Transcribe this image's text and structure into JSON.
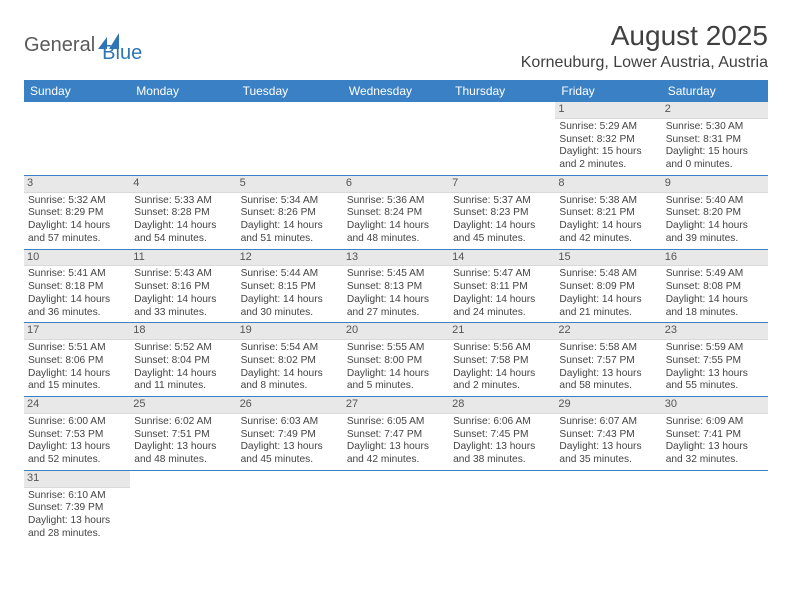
{
  "logo": {
    "word1": "General",
    "word2": "Blue"
  },
  "title": "August 2025",
  "location": "Korneuburg, Lower Austria, Austria",
  "colors": {
    "header_bg": "#3a80c4",
    "header_fg": "#ffffff",
    "daynum_bg": "#e8e8e8",
    "border": "#3a80c4",
    "logo_blue": "#2f75b5",
    "text": "#404040"
  },
  "weekdays": [
    "Sunday",
    "Monday",
    "Tuesday",
    "Wednesday",
    "Thursday",
    "Friday",
    "Saturday"
  ],
  "weeks": [
    [
      null,
      null,
      null,
      null,
      null,
      {
        "d": "1",
        "r": "Sunrise: 5:29 AM",
        "s": "Sunset: 8:32 PM",
        "l1": "Daylight: 15 hours",
        "l2": "and 2 minutes."
      },
      {
        "d": "2",
        "r": "Sunrise: 5:30 AM",
        "s": "Sunset: 8:31 PM",
        "l1": "Daylight: 15 hours",
        "l2": "and 0 minutes."
      }
    ],
    [
      {
        "d": "3",
        "r": "Sunrise: 5:32 AM",
        "s": "Sunset: 8:29 PM",
        "l1": "Daylight: 14 hours",
        "l2": "and 57 minutes."
      },
      {
        "d": "4",
        "r": "Sunrise: 5:33 AM",
        "s": "Sunset: 8:28 PM",
        "l1": "Daylight: 14 hours",
        "l2": "and 54 minutes."
      },
      {
        "d": "5",
        "r": "Sunrise: 5:34 AM",
        "s": "Sunset: 8:26 PM",
        "l1": "Daylight: 14 hours",
        "l2": "and 51 minutes."
      },
      {
        "d": "6",
        "r": "Sunrise: 5:36 AM",
        "s": "Sunset: 8:24 PM",
        "l1": "Daylight: 14 hours",
        "l2": "and 48 minutes."
      },
      {
        "d": "7",
        "r": "Sunrise: 5:37 AM",
        "s": "Sunset: 8:23 PM",
        "l1": "Daylight: 14 hours",
        "l2": "and 45 minutes."
      },
      {
        "d": "8",
        "r": "Sunrise: 5:38 AM",
        "s": "Sunset: 8:21 PM",
        "l1": "Daylight: 14 hours",
        "l2": "and 42 minutes."
      },
      {
        "d": "9",
        "r": "Sunrise: 5:40 AM",
        "s": "Sunset: 8:20 PM",
        "l1": "Daylight: 14 hours",
        "l2": "and 39 minutes."
      }
    ],
    [
      {
        "d": "10",
        "r": "Sunrise: 5:41 AM",
        "s": "Sunset: 8:18 PM",
        "l1": "Daylight: 14 hours",
        "l2": "and 36 minutes."
      },
      {
        "d": "11",
        "r": "Sunrise: 5:43 AM",
        "s": "Sunset: 8:16 PM",
        "l1": "Daylight: 14 hours",
        "l2": "and 33 minutes."
      },
      {
        "d": "12",
        "r": "Sunrise: 5:44 AM",
        "s": "Sunset: 8:15 PM",
        "l1": "Daylight: 14 hours",
        "l2": "and 30 minutes."
      },
      {
        "d": "13",
        "r": "Sunrise: 5:45 AM",
        "s": "Sunset: 8:13 PM",
        "l1": "Daylight: 14 hours",
        "l2": "and 27 minutes."
      },
      {
        "d": "14",
        "r": "Sunrise: 5:47 AM",
        "s": "Sunset: 8:11 PM",
        "l1": "Daylight: 14 hours",
        "l2": "and 24 minutes."
      },
      {
        "d": "15",
        "r": "Sunrise: 5:48 AM",
        "s": "Sunset: 8:09 PM",
        "l1": "Daylight: 14 hours",
        "l2": "and 21 minutes."
      },
      {
        "d": "16",
        "r": "Sunrise: 5:49 AM",
        "s": "Sunset: 8:08 PM",
        "l1": "Daylight: 14 hours",
        "l2": "and 18 minutes."
      }
    ],
    [
      {
        "d": "17",
        "r": "Sunrise: 5:51 AM",
        "s": "Sunset: 8:06 PM",
        "l1": "Daylight: 14 hours",
        "l2": "and 15 minutes."
      },
      {
        "d": "18",
        "r": "Sunrise: 5:52 AM",
        "s": "Sunset: 8:04 PM",
        "l1": "Daylight: 14 hours",
        "l2": "and 11 minutes."
      },
      {
        "d": "19",
        "r": "Sunrise: 5:54 AM",
        "s": "Sunset: 8:02 PM",
        "l1": "Daylight: 14 hours",
        "l2": "and 8 minutes."
      },
      {
        "d": "20",
        "r": "Sunrise: 5:55 AM",
        "s": "Sunset: 8:00 PM",
        "l1": "Daylight: 14 hours",
        "l2": "and 5 minutes."
      },
      {
        "d": "21",
        "r": "Sunrise: 5:56 AM",
        "s": "Sunset: 7:58 PM",
        "l1": "Daylight: 14 hours",
        "l2": "and 2 minutes."
      },
      {
        "d": "22",
        "r": "Sunrise: 5:58 AM",
        "s": "Sunset: 7:57 PM",
        "l1": "Daylight: 13 hours",
        "l2": "and 58 minutes."
      },
      {
        "d": "23",
        "r": "Sunrise: 5:59 AM",
        "s": "Sunset: 7:55 PM",
        "l1": "Daylight: 13 hours",
        "l2": "and 55 minutes."
      }
    ],
    [
      {
        "d": "24",
        "r": "Sunrise: 6:00 AM",
        "s": "Sunset: 7:53 PM",
        "l1": "Daylight: 13 hours",
        "l2": "and 52 minutes."
      },
      {
        "d": "25",
        "r": "Sunrise: 6:02 AM",
        "s": "Sunset: 7:51 PM",
        "l1": "Daylight: 13 hours",
        "l2": "and 48 minutes."
      },
      {
        "d": "26",
        "r": "Sunrise: 6:03 AM",
        "s": "Sunset: 7:49 PM",
        "l1": "Daylight: 13 hours",
        "l2": "and 45 minutes."
      },
      {
        "d": "27",
        "r": "Sunrise: 6:05 AM",
        "s": "Sunset: 7:47 PM",
        "l1": "Daylight: 13 hours",
        "l2": "and 42 minutes."
      },
      {
        "d": "28",
        "r": "Sunrise: 6:06 AM",
        "s": "Sunset: 7:45 PM",
        "l1": "Daylight: 13 hours",
        "l2": "and 38 minutes."
      },
      {
        "d": "29",
        "r": "Sunrise: 6:07 AM",
        "s": "Sunset: 7:43 PM",
        "l1": "Daylight: 13 hours",
        "l2": "and 35 minutes."
      },
      {
        "d": "30",
        "r": "Sunrise: 6:09 AM",
        "s": "Sunset: 7:41 PM",
        "l1": "Daylight: 13 hours",
        "l2": "and 32 minutes."
      }
    ],
    [
      {
        "d": "31",
        "r": "Sunrise: 6:10 AM",
        "s": "Sunset: 7:39 PM",
        "l1": "Daylight: 13 hours",
        "l2": "and 28 minutes."
      },
      null,
      null,
      null,
      null,
      null,
      null
    ]
  ]
}
